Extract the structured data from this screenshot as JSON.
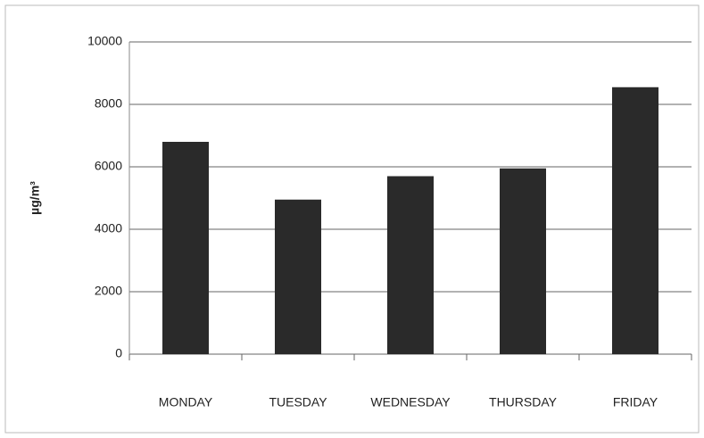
{
  "chart_data": {
    "type": "bar",
    "y_label": "µg/m³",
    "categories": [
      "MONDAY",
      "TUESDAY",
      "WEDNESDAY",
      "THURSDAY",
      "FRIDAY"
    ],
    "values": [
      6800,
      4950,
      5700,
      5950,
      8550
    ],
    "color": "#2a2a2a",
    "ylim": [
      0,
      10000
    ],
    "yticks": [
      0,
      2000,
      4000,
      6000,
      8000,
      10000
    ],
    "grid": true
  }
}
